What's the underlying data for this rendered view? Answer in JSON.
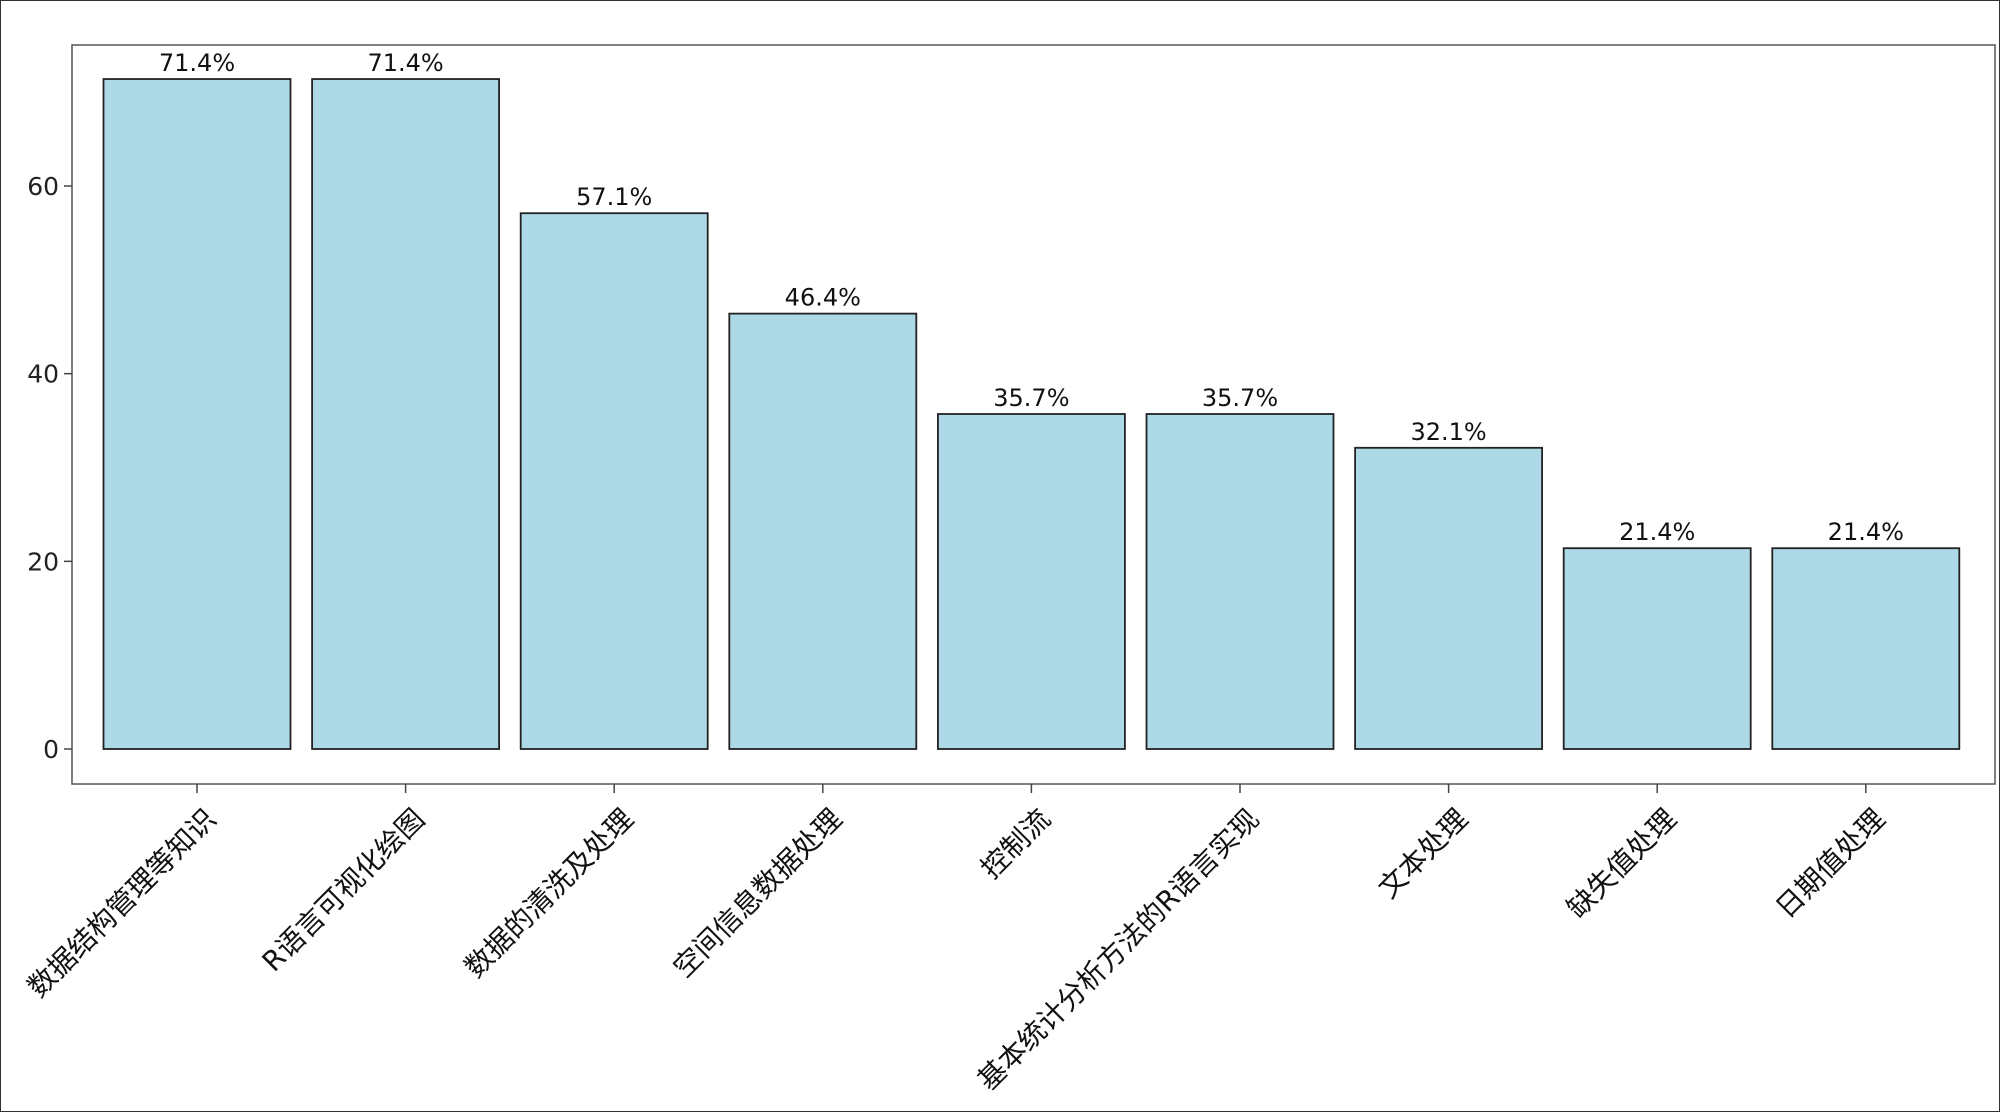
{
  "chart_data": {
    "type": "bar",
    "title": "",
    "xlabel": "",
    "ylabel": "",
    "ylim": [
      0,
      75
    ],
    "yticks": [
      0,
      20,
      40,
      60
    ],
    "grid": false,
    "bar_color": "#add8e6",
    "bar_edge_color": "#222222",
    "categories": [
      "数据结构管理等知识",
      "R语言可视化绘图",
      "数据的清洗及处理",
      "空间信息数据处理",
      "控制流",
      "基本统计分析方法的R语言实现",
      "文本处理",
      "缺失值处理",
      "日期值处理"
    ],
    "values": [
      71.4,
      71.4,
      57.1,
      46.4,
      35.7,
      35.7,
      32.1,
      21.4,
      21.4
    ],
    "data_labels": [
      "71.4%",
      "71.4%",
      "57.1%",
      "46.4%",
      "35.7%",
      "35.7%",
      "32.1%",
      "21.4%",
      "21.4%"
    ],
    "ytick_labels": [
      "0",
      "20",
      "40",
      "60"
    ]
  }
}
